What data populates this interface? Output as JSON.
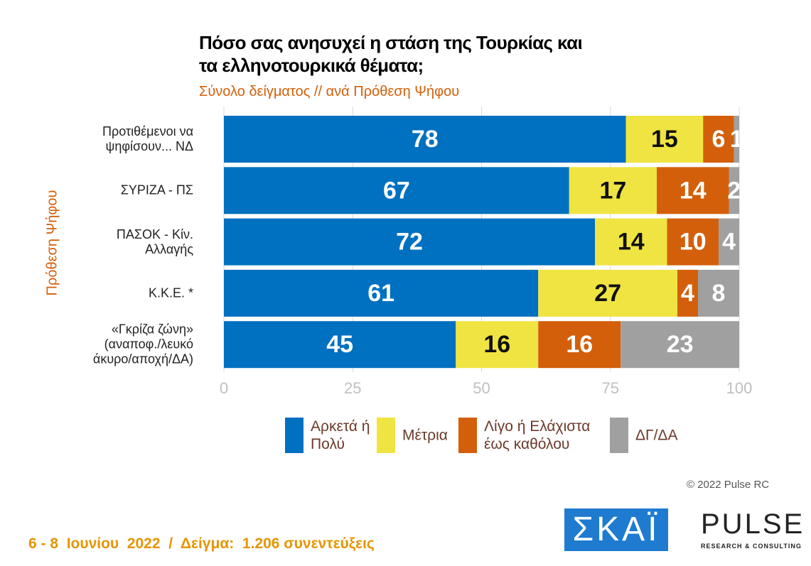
{
  "chart_data": {
    "type": "stacked_barh",
    "title": "Πόσο σας ανησυχεί η στάση της Τουρκίας και τα ελληνοτουρκικά θέματα;",
    "subtitle": "Σύνολο δείγματος // ανά Πρόθεση Ψήφου",
    "ylabel": "Πρόθεση Ψήφου",
    "categories": [
      "Προτιθέμενοι να ψηφίσουν... ΝΔ",
      "ΣΥΡΙΖΑ - ΠΣ",
      "ΠΑΣΟΚ - Κίν. Αλλαγής",
      "Κ.Κ.Ε. *",
      "«Γκρίζα ζώνη» (αναποφ./λευκό άκυρο/αποχή/ΔΑ)"
    ],
    "series": [
      {
        "name": "Αρκετά ή Πολύ",
        "color": "#0070c0",
        "values": [
          78,
          67,
          72,
          61,
          45
        ]
      },
      {
        "name": "Μέτρια",
        "color": "#f0e442",
        "values": [
          15,
          17,
          14,
          27,
          16
        ]
      },
      {
        "name": "Λίγο ή Ελάχιστα έως καθόλου",
        "color": "#d35f0a",
        "values": [
          6,
          14,
          10,
          4,
          16
        ]
      },
      {
        "name": "ΔΓ/ΔΑ",
        "color": "#a0a0a0",
        "values": [
          1,
          2,
          4,
          8,
          23
        ]
      }
    ],
    "xlim": [
      0,
      100
    ],
    "xticks": [
      0,
      25,
      50,
      75,
      100
    ],
    "grid": true
  },
  "footer": "6 - 8  Ιουνίου  2022  /  Δείγμα:  1.206 συνεντεύξεις",
  "copyright": "© 2022 Pulse RC",
  "logos": {
    "skai": "ΣΚΑΪ",
    "pulse": "PULSE",
    "pulse_sub": "RESEARCH & CONSULTING"
  }
}
